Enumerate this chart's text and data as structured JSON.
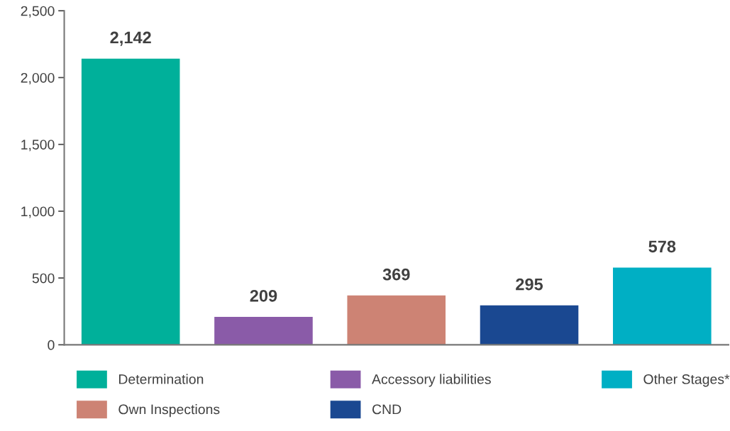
{
  "chart_data": {
    "type": "bar",
    "categories": [
      null,
      null,
      null,
      null,
      null
    ],
    "series": [
      {
        "name": "Determination",
        "color": "#00b09a",
        "values": [
          2142,
          null,
          null,
          null,
          null
        ],
        "value_labels": [
          "2,142",
          null,
          null,
          null,
          null
        ]
      },
      {
        "name": "Accessory liabilities",
        "color": "#8a5ba8",
        "values": [
          null,
          209,
          null,
          null,
          null
        ],
        "value_labels": [
          null,
          "209",
          null,
          null,
          null
        ]
      },
      {
        "name": "Own Inspections",
        "color": "#cd8374",
        "values": [
          null,
          null,
          369,
          null,
          null
        ],
        "value_labels": [
          null,
          null,
          "369",
          null,
          null
        ]
      },
      {
        "name": "CND",
        "color": "#1a4891",
        "values": [
          null,
          null,
          null,
          295,
          null
        ],
        "value_labels": [
          null,
          null,
          null,
          "295",
          null
        ]
      },
      {
        "name": "Other Stages*",
        "color": "#00afc4",
        "values": [
          null,
          null,
          null,
          null,
          578
        ],
        "value_labels": [
          null,
          null,
          null,
          null,
          "578"
        ]
      }
    ],
    "ylim": [
      0,
      2500
    ],
    "yticks": [
      {
        "value": 0,
        "label": "0"
      },
      {
        "value": 500,
        "label": "500"
      },
      {
        "value": 1000,
        "label": "1,000"
      },
      {
        "value": 1500,
        "label": "1,500"
      },
      {
        "value": 2000,
        "label": "2,000"
      },
      {
        "value": 2500,
        "label": "2,500"
      }
    ],
    "legend": "bottom",
    "grid": false,
    "tick_labels": "y"
  }
}
